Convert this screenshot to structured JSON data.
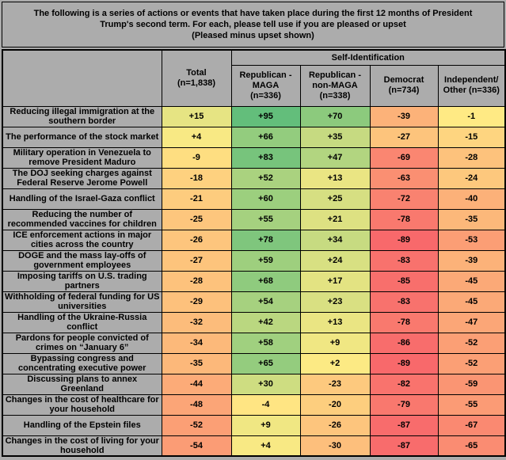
{
  "header": {
    "title_main": "The following is a series of actions or events that have taken place during the first 12 months of President Trump's second term. For each, please tell use if you are pleased or upset",
    "title_sub": "(Pleased minus upset shown)"
  },
  "table": {
    "corner_label": "",
    "group_header": "Self-Identification",
    "total_header": "Total\n(n=1,838)",
    "col_headers": [
      "Republican -\nMAGA\n(n=336)",
      "Republican -\nnon-MAGA\n(n=338)",
      "Democrat\n(n=734)",
      "Independent/\nOther (n=336)"
    ]
  },
  "colors": {
    "background_gray": "#ACACAC",
    "scale_min_red": "#F8696B",
    "scale_mid_yellow": "#FFEB84",
    "scale_max_green": "#63BE7B",
    "border_black": "#000000"
  },
  "chart_data": {
    "type": "heatmap",
    "title": "The following is a series of actions or events that have taken place during the first 12 months of President Trump's second term. For each, please tell use if you are pleased or upset (Pleased minus upset shown)",
    "columns": [
      "Total (n=1,838)",
      "Republican - MAGA (n=336)",
      "Republican - non-MAGA (n=338)",
      "Democrat (n=734)",
      "Independent/Other (n=336)"
    ],
    "color_scale": {
      "min_value": -89,
      "mid_value": 0,
      "max_value": 95,
      "min_color": "#F8696B",
      "mid_color": "#FFEB84",
      "max_color": "#63BE7B"
    },
    "rows": [
      {
        "label": "Reducing illegal immigration at the southern border",
        "values": [
          "+15",
          "+95",
          "+70",
          "-39",
          "-1"
        ]
      },
      {
        "label": "The performance of the stock market",
        "values": [
          "+4",
          "+66",
          "+35",
          "-27",
          "-15"
        ]
      },
      {
        "label": "Military operation in Venezuela to remove President Maduro",
        "values": [
          "-9",
          "+83",
          "+47",
          "-69",
          "-28"
        ]
      },
      {
        "label": "The DOJ seeking charges against Federal Reserve Jerome Powell",
        "values": [
          "-18",
          "+52",
          "+13",
          "-63",
          "-24"
        ]
      },
      {
        "label": "Handling of the Israel-Gaza conflict",
        "values": [
          "-21",
          "+60",
          "+25",
          "-72",
          "-40"
        ]
      },
      {
        "label": "Reducing the number of recommended vaccines for children",
        "values": [
          "-25",
          "+55",
          "+21",
          "-78",
          "-35"
        ]
      },
      {
        "label": "ICE enforcement actions in major cities across the country",
        "values": [
          "-26",
          "+78",
          "+34",
          "-89",
          "-53"
        ]
      },
      {
        "label": "DOGE and the mass lay-offs of government employees",
        "values": [
          "-27",
          "+59",
          "+24",
          "-83",
          "-39"
        ]
      },
      {
        "label": "Imposing tariffs on U.S. trading partners",
        "values": [
          "-28",
          "+68",
          "+17",
          "-85",
          "-45"
        ]
      },
      {
        "label": "Withholding of federal funding for US universities",
        "values": [
          "-29",
          "+54",
          "+23",
          "-83",
          "-45"
        ]
      },
      {
        "label": "Handling of the Ukraine-Russia conflict",
        "values": [
          "-32",
          "+42",
          "+13",
          "-78",
          "-47"
        ]
      },
      {
        "label": "Pardons for people convicted of crimes on “January 6”",
        "values": [
          "-34",
          "+58",
          "+9",
          "-86",
          "-52"
        ]
      },
      {
        "label": "Bypassing congress and concentrating executive power",
        "values": [
          "-35",
          "+65",
          "+2",
          "-89",
          "-52"
        ]
      },
      {
        "label": "Discussing plans to annex Greenland",
        "values": [
          "-44",
          "+30",
          "-23",
          "-82",
          "-59"
        ]
      },
      {
        "label": "Changes in the cost of healthcare for your household",
        "values": [
          "-48",
          "-4",
          "-20",
          "-79",
          "-55"
        ]
      },
      {
        "label": "Handling of the Epstein files",
        "values": [
          "-52",
          "+9",
          "-26",
          "-87",
          "-67"
        ]
      },
      {
        "label": "Changes in the cost of living for your household",
        "values": [
          "-54",
          "+4",
          "-30",
          "-87",
          "-65"
        ]
      }
    ]
  }
}
